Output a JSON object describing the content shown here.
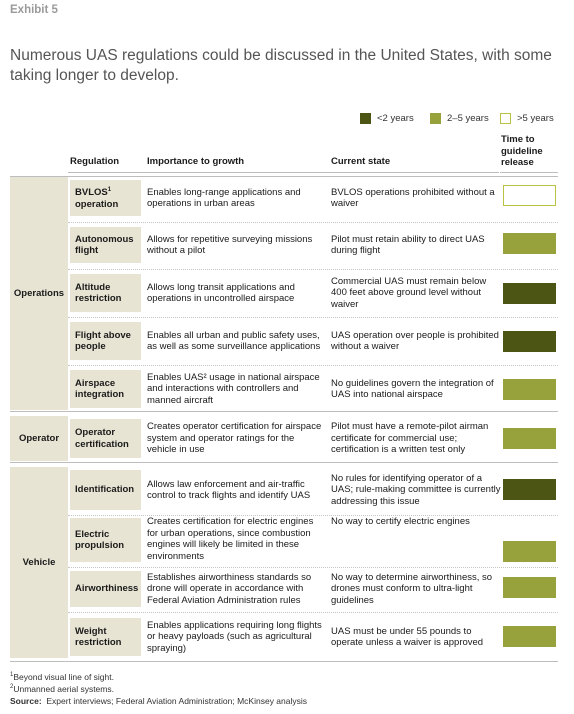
{
  "exhibit": "Exhibit 5",
  "headline": "Numerous UAS regulations could be discussed in the United States, with some taking longer to develop.",
  "colors": {
    "lt2": "#4d5514",
    "mid": "#97a23d",
    "gt5_border": "#b9c244",
    "group_bg": "#e8e4d4"
  },
  "legend": [
    {
      "label": "<2 years",
      "key": "lt2"
    },
    {
      "label": "2–5 years",
      "key": "mid"
    },
    {
      "label": ">5 years",
      "key": "gt5"
    }
  ],
  "headers": {
    "regulation": "Regulation",
    "importance": "Importance to growth",
    "current": "Current state",
    "time": "Time to guideline release"
  },
  "groups": [
    {
      "name": "Operations"
    },
    {
      "name": "Operator"
    },
    {
      "name": "Vehicle"
    }
  ],
  "rows": [
    {
      "reg": "BVLOS",
      "sup": "1",
      "reg2": "operation",
      "importance": "Enables long-range applications and operations in urban areas",
      "current": "BVLOS operations prohibited without a waiver",
      "time": "gt5"
    },
    {
      "reg": "Autonomous flight",
      "importance": "Allows for repetitive surveying missions without a pilot",
      "current": "Pilot must retain ability to direct UAS during flight",
      "time": "mid"
    },
    {
      "reg": "Altitude restriction",
      "importance": "Allows long transit applications and operations in uncontrolled airspace",
      "current": "Commercial UAS must remain below 400 feet above ground level without waiver",
      "time": "lt2"
    },
    {
      "reg": "Flight above people",
      "importance": "Enables all urban and public safety uses, as well as some surveillance applications",
      "current": "UAS operation over people is prohibited without a waiver",
      "time": "lt2"
    },
    {
      "reg": "Airspace integration",
      "importance": "Enables UAS² usage in national airspace and interactions with controllers and manned aircraft",
      "current": "No guidelines govern the integration of UAS into national airspace",
      "time": "mid"
    },
    {
      "reg": "Operator certification",
      "importance": "Creates operator certification for airspace system and operator ratings for the vehicle in use",
      "current": "Pilot must have a remote-pilot airman certificate for commercial use; certification is a written test only",
      "time": "mid"
    },
    {
      "reg": "Identification",
      "importance": "Allows law enforcement and air-traffic control to track flights and identify UAS",
      "current": "No rules for identifying operator of a UAS; rule-making committee is currently addressing this issue",
      "time": "lt2"
    },
    {
      "reg": "Electric propulsion",
      "importance": "Creates certification for electric engines for urban operations, since combustion engines will likely be limited in these environments",
      "current": "No way to certify electric engines",
      "time": "mid"
    },
    {
      "reg": "Airworthiness",
      "importance": "Establishes airworthiness standards so drone will operate in accordance with Federal Aviation Administration rules",
      "current": "No way to determine airworthiness, so drones must conform to ultra-light guidelines",
      "time": "mid"
    },
    {
      "reg": "Weight restriction",
      "importance": "Enables applications requiring long flights or heavy payloads (such as agricultural spraying)",
      "current": "UAS must be under 55 pounds to operate unless a waiver is approved",
      "time": "mid"
    }
  ],
  "footnotes": {
    "f1": "Beyond visual line of sight.",
    "f2": "Unmanned aerial systems.",
    "source_label": "Source:",
    "source": "Expert interviews; Federal Aviation Administration; McKinsey analysis"
  }
}
